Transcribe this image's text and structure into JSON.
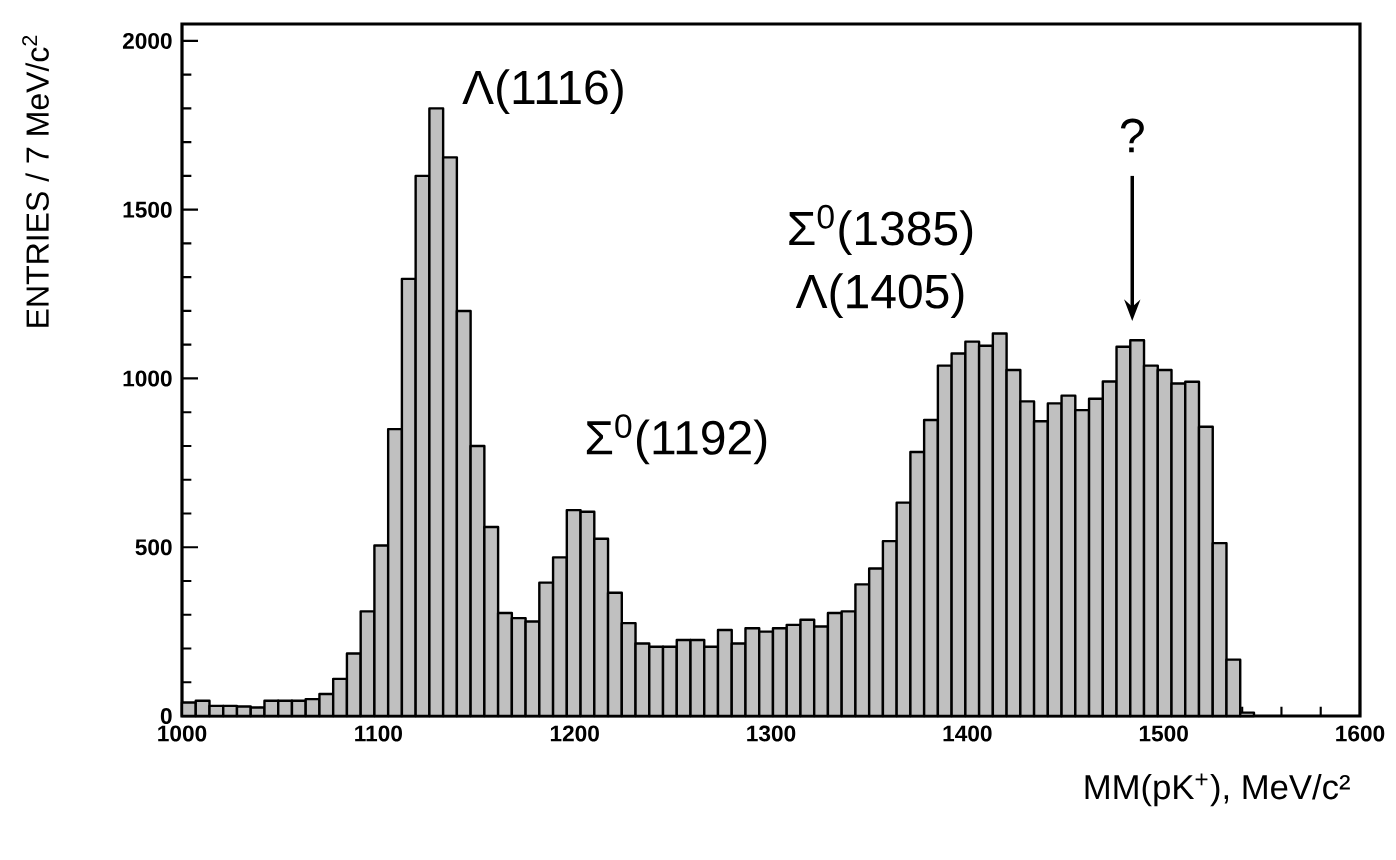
{
  "chart_data": {
    "type": "histogram",
    "xlabel": "MM(pK$^{+}$), MeV/c²",
    "ylabel": "ENTRIES / 7 MeV/c$^{2}$",
    "bins": [
      1000,
      1007,
      1014,
      1021,
      1028,
      1035,
      1042,
      1049,
      1056,
      1063,
      1070,
      1077,
      1084,
      1091,
      1098,
      1105,
      1112,
      1119,
      1126,
      1133,
      1140,
      1147,
      1154,
      1161,
      1168,
      1175,
      1182,
      1189,
      1196,
      1203,
      1210,
      1217,
      1224,
      1231,
      1238,
      1245,
      1252,
      1259,
      1266,
      1273,
      1280,
      1287,
      1294,
      1301,
      1308,
      1315,
      1322,
      1329,
      1336,
      1343,
      1350,
      1357,
      1364,
      1371,
      1378,
      1385,
      1392,
      1399,
      1406,
      1413,
      1420,
      1427,
      1434,
      1441,
      1448,
      1455,
      1462,
      1469,
      1476,
      1483,
      1490,
      1497,
      1504,
      1511,
      1518,
      1525,
      1532,
      1539,
      1546
    ],
    "values": [
      40,
      45,
      30,
      30,
      28,
      25,
      45,
      45,
      45,
      50,
      65,
      110,
      185,
      310,
      505,
      850,
      1295,
      1600,
      1800,
      1655,
      1200,
      800,
      560,
      305,
      290,
      280,
      395,
      470,
      610,
      605,
      525,
      365,
      275,
      215,
      205,
      205,
      225,
      225,
      205,
      255,
      215,
      260,
      250,
      260,
      270,
      285,
      265,
      305,
      310,
      390,
      437,
      518,
      632,
      782,
      877,
      1038,
      1074,
      1109,
      1097,
      1133,
      1025,
      932,
      873,
      926,
      949,
      906,
      940,
      991,
      1094,
      1113,
      1038,
      1025,
      985,
      990,
      857,
      512,
      167,
      10
    ],
    "color": "#c0c0c0",
    "xlim": [
      1000,
      1600
    ],
    "ylim": [
      0,
      2050
    ],
    "xticks": [
      1000,
      1100,
      1200,
      1300,
      1400,
      1500,
      1600
    ],
    "yticks": [
      0,
      500,
      1000,
      1500,
      2000
    ],
    "grid": false,
    "annotations": [
      "Λ(1116)",
      "Σ$^{0}$(1192)",
      "Σ$^{0}$(1385)",
      "Λ(1405)",
      "?"
    ]
  }
}
